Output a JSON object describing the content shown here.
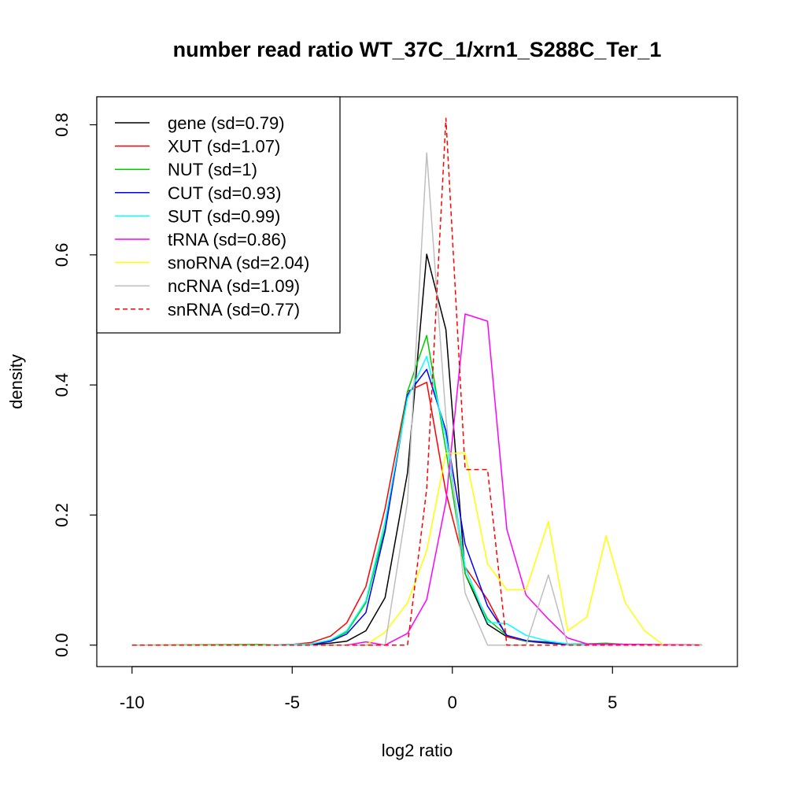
{
  "chart_data": {
    "type": "line",
    "title": "number read ratio WT_37C_1/xrn1_S288C_Ter_1",
    "xlabel": "log2 ratio",
    "ylabel": "density",
    "xlim": [
      -11.1,
      8.9
    ],
    "ylim": [
      -0.033,
      0.843
    ],
    "xticks": [
      -10,
      -5,
      0,
      5
    ],
    "xtick_labels": [
      "-10",
      "-5",
      "0",
      "5"
    ],
    "yticks": [
      0.0,
      0.2,
      0.4,
      0.6,
      0.8
    ],
    "ytick_labels": [
      "0.0",
      "0.2",
      "0.4",
      "0.6",
      "0.8"
    ],
    "grid": false,
    "legend_position": "top-left",
    "series": [
      {
        "name": "gene (sd=0.79)",
        "color": "#000000",
        "dash": "solid",
        "points": [
          [
            -10,
            0
          ],
          [
            -6,
            0
          ],
          [
            -5,
            0.001
          ],
          [
            -4.4,
            0.001
          ],
          [
            -3.8,
            0.003
          ],
          [
            -3.3,
            0.006
          ],
          [
            -2.7,
            0.022
          ],
          [
            -2.1,
            0.073
          ],
          [
            -1.4,
            0.265
          ],
          [
            -0.8,
            0.601
          ],
          [
            -0.2,
            0.485
          ],
          [
            0.4,
            0.11
          ],
          [
            1.1,
            0.032
          ],
          [
            1.7,
            0.013
          ],
          [
            2.3,
            0.006
          ],
          [
            3,
            0.003
          ],
          [
            3.6,
            0.001
          ],
          [
            4.2,
            0.001
          ],
          [
            7.8,
            0
          ]
        ]
      },
      {
        "name": "XUT (sd=1.07)",
        "color": "#ff0000",
        "dash": "solid",
        "points": [
          [
            -10,
            0
          ],
          [
            -6,
            0
          ],
          [
            -5,
            0.001
          ],
          [
            -4.4,
            0.004
          ],
          [
            -3.8,
            0.014
          ],
          [
            -3.3,
            0.034
          ],
          [
            -2.7,
            0.09
          ],
          [
            -2.1,
            0.21
          ],
          [
            -1.4,
            0.39
          ],
          [
            -0.8,
            0.404
          ],
          [
            -0.2,
            0.235
          ],
          [
            0.4,
            0.12
          ],
          [
            1.1,
            0.07
          ],
          [
            1.7,
            0.013
          ],
          [
            2.3,
            0.006
          ],
          [
            3,
            0.004
          ],
          [
            3.6,
            0.001
          ],
          [
            4.2,
            0.001
          ],
          [
            7.8,
            0
          ]
        ]
      },
      {
        "name": "NUT (sd=1)",
        "color": "#00cc00",
        "dash": "solid",
        "points": [
          [
            -10,
            0
          ],
          [
            -6,
            0.001
          ],
          [
            -5,
            0
          ],
          [
            -4.4,
            0.002
          ],
          [
            -3.8,
            0.007
          ],
          [
            -3.3,
            0.02
          ],
          [
            -2.7,
            0.065
          ],
          [
            -2.1,
            0.18
          ],
          [
            -1.4,
            0.39
          ],
          [
            -0.8,
            0.476
          ],
          [
            -0.2,
            0.3
          ],
          [
            0.4,
            0.11
          ],
          [
            1.1,
            0.04
          ],
          [
            1.7,
            0.015
          ],
          [
            2.3,
            0.006
          ],
          [
            3,
            0.005
          ],
          [
            3.6,
            0.002
          ],
          [
            4.2,
            0.002
          ],
          [
            4.8,
            0.003
          ],
          [
            5.4,
            0.001
          ],
          [
            7.8,
            0
          ]
        ]
      },
      {
        "name": "CUT (sd=0.93)",
        "color": "#0000ff",
        "dash": "solid",
        "points": [
          [
            -10,
            0
          ],
          [
            -6,
            0
          ],
          [
            -5,
            0
          ],
          [
            -4.4,
            0.001
          ],
          [
            -3.8,
            0.006
          ],
          [
            -3.3,
            0.017
          ],
          [
            -2.7,
            0.05
          ],
          [
            -2.1,
            0.175
          ],
          [
            -1.4,
            0.385
          ],
          [
            -0.8,
            0.424
          ],
          [
            -0.2,
            0.33
          ],
          [
            0.4,
            0.155
          ],
          [
            1.1,
            0.06
          ],
          [
            1.7,
            0.015
          ],
          [
            2.3,
            0.007
          ],
          [
            3,
            0.004
          ],
          [
            3.6,
            0.001
          ],
          [
            4.2,
            0.001
          ],
          [
            7.8,
            0
          ]
        ]
      },
      {
        "name": "SUT (sd=0.99)",
        "color": "#00ffff",
        "dash": "solid",
        "points": [
          [
            -10,
            0
          ],
          [
            -6,
            0
          ],
          [
            -5,
            0.001
          ],
          [
            -4.4,
            0.002
          ],
          [
            -3.8,
            0.008
          ],
          [
            -3.3,
            0.022
          ],
          [
            -2.7,
            0.068
          ],
          [
            -2.1,
            0.19
          ],
          [
            -1.4,
            0.38
          ],
          [
            -0.8,
            0.444
          ],
          [
            -0.2,
            0.32
          ],
          [
            0.4,
            0.12
          ],
          [
            1.1,
            0.035
          ],
          [
            1.7,
            0.033
          ],
          [
            2.3,
            0.015
          ],
          [
            3,
            0.006
          ],
          [
            3.6,
            0.002
          ],
          [
            4.2,
            0.001
          ],
          [
            7.8,
            0
          ]
        ]
      },
      {
        "name": "tRNA (sd=0.86)",
        "color": "#ff00ff",
        "dash": "solid",
        "points": [
          [
            -10,
            0
          ],
          [
            -3.3,
            0
          ],
          [
            -2.7,
            0.005
          ],
          [
            -2.1,
            0
          ],
          [
            -1.4,
            0.018
          ],
          [
            -0.8,
            0.07
          ],
          [
            -0.2,
            0.22
          ],
          [
            0.4,
            0.509
          ],
          [
            1.1,
            0.498
          ],
          [
            1.7,
            0.178
          ],
          [
            2.3,
            0.077
          ],
          [
            3,
            0.04
          ],
          [
            3.6,
            0.011
          ],
          [
            4.2,
            0.002
          ],
          [
            7.8,
            0
          ]
        ]
      },
      {
        "name": "snoRNA (sd=2.04)",
        "color": "#ffff00",
        "dash": "solid",
        "points": [
          [
            -10,
            0
          ],
          [
            -3.3,
            0
          ],
          [
            -2.7,
            0
          ],
          [
            -2.1,
            0.02
          ],
          [
            -1.4,
            0.065
          ],
          [
            -0.8,
            0.145
          ],
          [
            -0.2,
            0.295
          ],
          [
            0.4,
            0.295
          ],
          [
            1.1,
            0.125
          ],
          [
            1.7,
            0.085
          ],
          [
            2.3,
            0.085
          ],
          [
            3,
            0.19
          ],
          [
            3.6,
            0.022
          ],
          [
            4.2,
            0.043
          ],
          [
            4.8,
            0.168
          ],
          [
            5.4,
            0.065
          ],
          [
            6,
            0.022
          ],
          [
            6.6,
            0
          ],
          [
            7.8,
            0
          ]
        ]
      },
      {
        "name": "ncRNA (sd=1.09)",
        "color": "#bebebe",
        "dash": "solid",
        "points": [
          [
            -10,
            0
          ],
          [
            -2.1,
            0
          ],
          [
            -1.4,
            0.22
          ],
          [
            -0.8,
            0.757
          ],
          [
            -0.2,
            0.35
          ],
          [
            0.4,
            0.08
          ],
          [
            1.1,
            0
          ],
          [
            2.3,
            0
          ],
          [
            3,
            0.108
          ],
          [
            3.6,
            0
          ],
          [
            7.8,
            0
          ]
        ]
      },
      {
        "name": "snRNA (sd=0.77)",
        "color": "#ff0000",
        "dash": "dashed",
        "points": [
          [
            -10,
            0
          ],
          [
            -1.4,
            0
          ],
          [
            -0.8,
            0.24
          ],
          [
            -0.2,
            0.81
          ],
          [
            0.4,
            0.27
          ],
          [
            1.1,
            0.27
          ],
          [
            1.7,
            0
          ],
          [
            7.8,
            0
          ]
        ]
      }
    ]
  }
}
